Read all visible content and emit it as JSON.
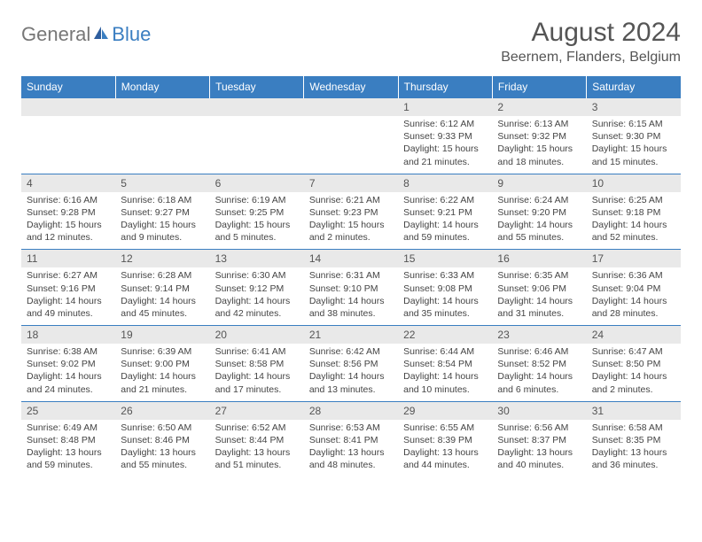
{
  "brand": {
    "part1": "General",
    "part2": "Blue"
  },
  "title": "August 2024",
  "location": "Beernem, Flanders, Belgium",
  "colors": {
    "header_bg": "#3a7ec1",
    "header_text": "#ffffff",
    "date_bg": "#e9e9e9",
    "date_border": "#3a7ec1",
    "body_text": "#444444"
  },
  "weekdays": [
    "Sunday",
    "Monday",
    "Tuesday",
    "Wednesday",
    "Thursday",
    "Friday",
    "Saturday"
  ],
  "weeks": [
    {
      "dates": [
        "",
        "",
        "",
        "",
        "1",
        "2",
        "3"
      ],
      "details": [
        {
          "sunrise": "",
          "sunset": "",
          "daylight": ""
        },
        {
          "sunrise": "",
          "sunset": "",
          "daylight": ""
        },
        {
          "sunrise": "",
          "sunset": "",
          "daylight": ""
        },
        {
          "sunrise": "",
          "sunset": "",
          "daylight": ""
        },
        {
          "sunrise": "Sunrise: 6:12 AM",
          "sunset": "Sunset: 9:33 PM",
          "daylight": "Daylight: 15 hours and 21 minutes."
        },
        {
          "sunrise": "Sunrise: 6:13 AM",
          "sunset": "Sunset: 9:32 PM",
          "daylight": "Daylight: 15 hours and 18 minutes."
        },
        {
          "sunrise": "Sunrise: 6:15 AM",
          "sunset": "Sunset: 9:30 PM",
          "daylight": "Daylight: 15 hours and 15 minutes."
        }
      ]
    },
    {
      "dates": [
        "4",
        "5",
        "6",
        "7",
        "8",
        "9",
        "10"
      ],
      "details": [
        {
          "sunrise": "Sunrise: 6:16 AM",
          "sunset": "Sunset: 9:28 PM",
          "daylight": "Daylight: 15 hours and 12 minutes."
        },
        {
          "sunrise": "Sunrise: 6:18 AM",
          "sunset": "Sunset: 9:27 PM",
          "daylight": "Daylight: 15 hours and 9 minutes."
        },
        {
          "sunrise": "Sunrise: 6:19 AM",
          "sunset": "Sunset: 9:25 PM",
          "daylight": "Daylight: 15 hours and 5 minutes."
        },
        {
          "sunrise": "Sunrise: 6:21 AM",
          "sunset": "Sunset: 9:23 PM",
          "daylight": "Daylight: 15 hours and 2 minutes."
        },
        {
          "sunrise": "Sunrise: 6:22 AM",
          "sunset": "Sunset: 9:21 PM",
          "daylight": "Daylight: 14 hours and 59 minutes."
        },
        {
          "sunrise": "Sunrise: 6:24 AM",
          "sunset": "Sunset: 9:20 PM",
          "daylight": "Daylight: 14 hours and 55 minutes."
        },
        {
          "sunrise": "Sunrise: 6:25 AM",
          "sunset": "Sunset: 9:18 PM",
          "daylight": "Daylight: 14 hours and 52 minutes."
        }
      ]
    },
    {
      "dates": [
        "11",
        "12",
        "13",
        "14",
        "15",
        "16",
        "17"
      ],
      "details": [
        {
          "sunrise": "Sunrise: 6:27 AM",
          "sunset": "Sunset: 9:16 PM",
          "daylight": "Daylight: 14 hours and 49 minutes."
        },
        {
          "sunrise": "Sunrise: 6:28 AM",
          "sunset": "Sunset: 9:14 PM",
          "daylight": "Daylight: 14 hours and 45 minutes."
        },
        {
          "sunrise": "Sunrise: 6:30 AM",
          "sunset": "Sunset: 9:12 PM",
          "daylight": "Daylight: 14 hours and 42 minutes."
        },
        {
          "sunrise": "Sunrise: 6:31 AM",
          "sunset": "Sunset: 9:10 PM",
          "daylight": "Daylight: 14 hours and 38 minutes."
        },
        {
          "sunrise": "Sunrise: 6:33 AM",
          "sunset": "Sunset: 9:08 PM",
          "daylight": "Daylight: 14 hours and 35 minutes."
        },
        {
          "sunrise": "Sunrise: 6:35 AM",
          "sunset": "Sunset: 9:06 PM",
          "daylight": "Daylight: 14 hours and 31 minutes."
        },
        {
          "sunrise": "Sunrise: 6:36 AM",
          "sunset": "Sunset: 9:04 PM",
          "daylight": "Daylight: 14 hours and 28 minutes."
        }
      ]
    },
    {
      "dates": [
        "18",
        "19",
        "20",
        "21",
        "22",
        "23",
        "24"
      ],
      "details": [
        {
          "sunrise": "Sunrise: 6:38 AM",
          "sunset": "Sunset: 9:02 PM",
          "daylight": "Daylight: 14 hours and 24 minutes."
        },
        {
          "sunrise": "Sunrise: 6:39 AM",
          "sunset": "Sunset: 9:00 PM",
          "daylight": "Daylight: 14 hours and 21 minutes."
        },
        {
          "sunrise": "Sunrise: 6:41 AM",
          "sunset": "Sunset: 8:58 PM",
          "daylight": "Daylight: 14 hours and 17 minutes."
        },
        {
          "sunrise": "Sunrise: 6:42 AM",
          "sunset": "Sunset: 8:56 PM",
          "daylight": "Daylight: 14 hours and 13 minutes."
        },
        {
          "sunrise": "Sunrise: 6:44 AM",
          "sunset": "Sunset: 8:54 PM",
          "daylight": "Daylight: 14 hours and 10 minutes."
        },
        {
          "sunrise": "Sunrise: 6:46 AM",
          "sunset": "Sunset: 8:52 PM",
          "daylight": "Daylight: 14 hours and 6 minutes."
        },
        {
          "sunrise": "Sunrise: 6:47 AM",
          "sunset": "Sunset: 8:50 PM",
          "daylight": "Daylight: 14 hours and 2 minutes."
        }
      ]
    },
    {
      "dates": [
        "25",
        "26",
        "27",
        "28",
        "29",
        "30",
        "31"
      ],
      "details": [
        {
          "sunrise": "Sunrise: 6:49 AM",
          "sunset": "Sunset: 8:48 PM",
          "daylight": "Daylight: 13 hours and 59 minutes."
        },
        {
          "sunrise": "Sunrise: 6:50 AM",
          "sunset": "Sunset: 8:46 PM",
          "daylight": "Daylight: 13 hours and 55 minutes."
        },
        {
          "sunrise": "Sunrise: 6:52 AM",
          "sunset": "Sunset: 8:44 PM",
          "daylight": "Daylight: 13 hours and 51 minutes."
        },
        {
          "sunrise": "Sunrise: 6:53 AM",
          "sunset": "Sunset: 8:41 PM",
          "daylight": "Daylight: 13 hours and 48 minutes."
        },
        {
          "sunrise": "Sunrise: 6:55 AM",
          "sunset": "Sunset: 8:39 PM",
          "daylight": "Daylight: 13 hours and 44 minutes."
        },
        {
          "sunrise": "Sunrise: 6:56 AM",
          "sunset": "Sunset: 8:37 PM",
          "daylight": "Daylight: 13 hours and 40 minutes."
        },
        {
          "sunrise": "Sunrise: 6:58 AM",
          "sunset": "Sunset: 8:35 PM",
          "daylight": "Daylight: 13 hours and 36 minutes."
        }
      ]
    }
  ]
}
